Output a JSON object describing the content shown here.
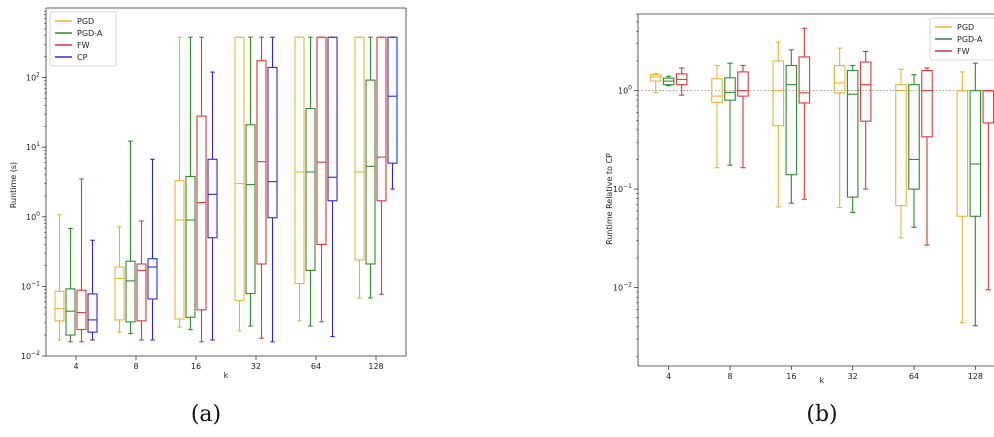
{
  "captions": [
    "(a)",
    "(b)"
  ],
  "chart_data": [
    {
      "type": "box",
      "title": "",
      "xlabel": "k",
      "ylabel": "Runtime (s)",
      "yscale": "log",
      "ylim": [
        0.01,
        1000
      ],
      "yticks": [
        {
          "value": 0.01,
          "base": "10",
          "exp": "−2"
        },
        {
          "value": 0.1,
          "base": "10",
          "exp": "−1"
        },
        {
          "value": 1,
          "base": "10",
          "exp": "0"
        },
        {
          "value": 10,
          "base": "10",
          "exp": "1"
        },
        {
          "value": 100,
          "base": "10",
          "exp": "2"
        }
      ],
      "categories": [
        "4",
        "8",
        "16",
        "32",
        "64",
        "128"
      ],
      "legend": {
        "position": "top-left"
      },
      "series": [
        {
          "name": "PGD",
          "color": "#E6B43C",
          "boxes": [
            {
              "whislo": 0.017,
              "q1": 0.032,
              "med": 0.048,
              "q3": 0.085,
              "whishi": 1.07
            },
            {
              "whislo": 0.022,
              "q1": 0.033,
              "med": 0.13,
              "q3": 0.19,
              "whishi": 0.72
            },
            {
              "whislo": 0.026,
              "q1": 0.034,
              "med": 0.9,
              "q3": 3.3,
              "whishi": 380
            },
            {
              "whislo": 0.023,
              "q1": 0.063,
              "med": 3.0,
              "q3": 380,
              "whishi": 380
            },
            {
              "whislo": 0.032,
              "q1": 0.11,
              "med": 4.4,
              "q3": 380,
              "whishi": 380
            },
            {
              "whislo": 0.068,
              "q1": 0.24,
              "med": 4.4,
              "q3": 380,
              "whishi": 380
            }
          ]
        },
        {
          "name": "PGD-A",
          "color": "#2E8B2E",
          "boxes": [
            {
              "whislo": 0.016,
              "q1": 0.02,
              "med": 0.044,
              "q3": 0.092,
              "whishi": 0.68
            },
            {
              "whislo": 0.021,
              "q1": 0.031,
              "med": 0.12,
              "q3": 0.23,
              "whishi": 12.2
            },
            {
              "whislo": 0.024,
              "q1": 0.036,
              "med": 0.9,
              "q3": 3.8,
              "whishi": 380
            },
            {
              "whislo": 0.027,
              "q1": 0.079,
              "med": 2.9,
              "q3": 21,
              "whishi": 380
            },
            {
              "whislo": 0.027,
              "q1": 0.17,
              "med": 4.4,
              "q3": 36,
              "whishi": 380
            },
            {
              "whislo": 0.068,
              "q1": 0.21,
              "med": 5.3,
              "q3": 92,
              "whishi": 380
            }
          ]
        },
        {
          "name": "FW",
          "color": "#D93A3A",
          "boxes": [
            {
              "whislo": 0.016,
              "q1": 0.024,
              "med": 0.042,
              "q3": 0.088,
              "whishi": 3.5
            },
            {
              "whislo": 0.017,
              "q1": 0.032,
              "med": 0.17,
              "q3": 0.21,
              "whishi": 0.87
            },
            {
              "whislo": 0.016,
              "q1": 0.046,
              "med": 1.6,
              "q3": 28,
              "whishi": 380
            },
            {
              "whislo": 0.018,
              "q1": 0.21,
              "med": 6.2,
              "q3": 175,
              "whishi": 380
            },
            {
              "whislo": 0.031,
              "q1": 0.4,
              "med": 6.1,
              "q3": 380,
              "whishi": 380
            },
            {
              "whislo": 0.077,
              "q1": 1.7,
              "med": 7.2,
              "q3": 380,
              "whishi": 380
            }
          ]
        },
        {
          "name": "CP",
          "color": "#2B2BD6",
          "boxes": [
            {
              "whislo": 0.017,
              "q1": 0.022,
              "med": 0.033,
              "q3": 0.078,
              "whishi": 0.46
            },
            {
              "whislo": 0.017,
              "q1": 0.066,
              "med": 0.19,
              "q3": 0.25,
              "whishi": 6.7
            },
            {
              "whislo": 0.017,
              "q1": 0.5,
              "med": 2.1,
              "q3": 6.7,
              "whishi": 120
            },
            {
              "whislo": 0.016,
              "q1": 0.97,
              "med": 3.2,
              "q3": 140,
              "whishi": 380
            },
            {
              "whislo": 0.019,
              "q1": 1.7,
              "med": 3.7,
              "q3": 380,
              "whishi": 380
            },
            {
              "whislo": 2.5,
              "q1": 5.9,
              "med": 54,
              "q3": 380,
              "whishi": 380
            }
          ]
        }
      ]
    },
    {
      "type": "box",
      "title": "",
      "xlabel": "k",
      "ylabel": "Runtime Relative to CP",
      "yscale": "log",
      "ylim": [
        0.0016,
        6.0
      ],
      "yticks": [
        {
          "value": 0.01,
          "base": "10",
          "exp": "−2"
        },
        {
          "value": 0.1,
          "base": "10",
          "exp": "−1"
        },
        {
          "value": 1,
          "base": "10",
          "exp": "0"
        }
      ],
      "reference_line": 1,
      "categories": [
        "4",
        "8",
        "16",
        "32",
        "64",
        "128"
      ],
      "legend": {
        "position": "top-right"
      },
      "series": [
        {
          "name": "PGD",
          "color": "#E6B43C",
          "boxes": [
            {
              "whislo": 0.95,
              "q1": 1.25,
              "med": 1.38,
              "q3": 1.45,
              "whishi": 1.48
            },
            {
              "whislo": 0.165,
              "q1": 0.76,
              "med": 0.88,
              "q3": 1.32,
              "whishi": 1.8
            },
            {
              "whislo": 0.066,
              "q1": 0.44,
              "med": 1.0,
              "q3": 2.0,
              "whishi": 3.1
            },
            {
              "whislo": 0.065,
              "q1": 0.95,
              "med": 1.2,
              "q3": 1.8,
              "whishi": 2.7
            },
            {
              "whislo": 0.032,
              "q1": 0.068,
              "med": 1.0,
              "q3": 1.15,
              "whishi": 1.65
            },
            {
              "whislo": 0.0044,
              "q1": 0.053,
              "med": 1.0,
              "q3": 1.0,
              "whishi": 1.55
            }
          ]
        },
        {
          "name": "PGD-A",
          "color": "#2E8B2E",
          "boxes": [
            {
              "whislo": 1.12,
              "q1": 1.15,
              "med": 1.25,
              "q3": 1.34,
              "whishi": 1.4
            },
            {
              "whislo": 0.175,
              "q1": 0.8,
              "med": 0.96,
              "q3": 1.35,
              "whishi": 1.9
            },
            {
              "whislo": 0.072,
              "q1": 0.14,
              "med": 1.15,
              "q3": 1.8,
              "whishi": 2.6
            },
            {
              "whislo": 0.058,
              "q1": 0.083,
              "med": 0.92,
              "q3": 1.6,
              "whishi": 1.8
            },
            {
              "whislo": 0.041,
              "q1": 0.1,
              "med": 0.2,
              "q3": 1.15,
              "whishi": 1.45
            },
            {
              "whislo": 0.0041,
              "q1": 0.053,
              "med": 0.18,
              "q3": 1.0,
              "whishi": 1.9
            }
          ]
        },
        {
          "name": "FW",
          "color": "#D93A3A",
          "boxes": [
            {
              "whislo": 0.9,
              "q1": 1.15,
              "med": 1.3,
              "q3": 1.48,
              "whishi": 1.7
            },
            {
              "whislo": 0.165,
              "q1": 0.88,
              "med": 1.0,
              "q3": 1.55,
              "whishi": 1.8
            },
            {
              "whislo": 0.079,
              "q1": 0.75,
              "med": 0.95,
              "q3": 2.2,
              "whishi": 4.3
            },
            {
              "whislo": 0.1,
              "q1": 0.49,
              "med": 1.15,
              "q3": 1.95,
              "whishi": 2.5
            },
            {
              "whislo": 0.027,
              "q1": 0.34,
              "med": 1.0,
              "q3": 1.6,
              "whishi": 1.7
            },
            {
              "whislo": 0.0095,
              "q1": 0.47,
              "med": 1.0,
              "q3": 1.0,
              "whishi": 1.0
            }
          ]
        }
      ]
    }
  ]
}
